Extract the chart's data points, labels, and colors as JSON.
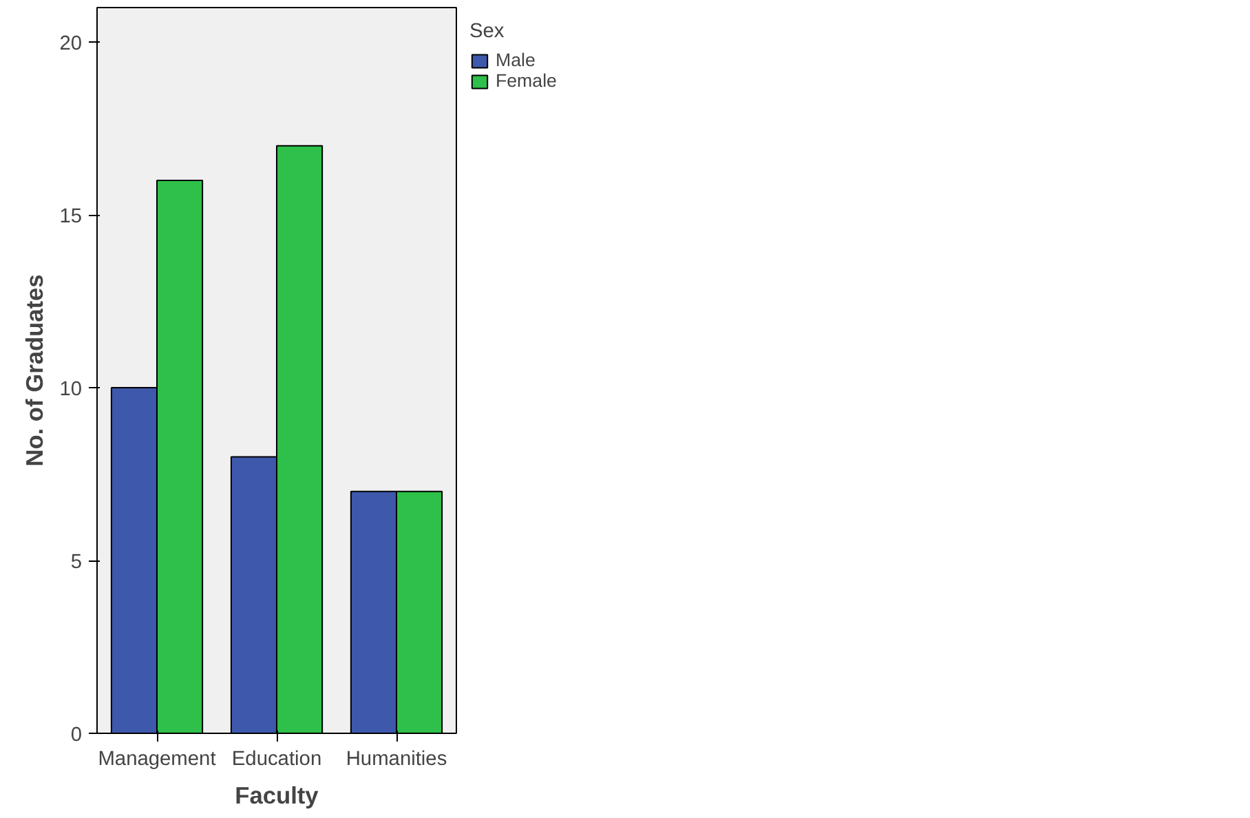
{
  "chart_data": {
    "type": "bar",
    "xlabel": "Faculty",
    "ylabel": "No. of Graduates",
    "legend_title": "Sex",
    "categories": [
      "Management",
      "Education",
      "Humanities"
    ],
    "series": [
      {
        "name": "Male",
        "color": "#3e58ac",
        "values": [
          10,
          8,
          7
        ]
      },
      {
        "name": "Female",
        "color": "#2ec04a",
        "values": [
          16,
          17,
          7
        ]
      }
    ],
    "ylim": [
      0,
      21
    ],
    "yticks": [
      0,
      5,
      10,
      15,
      20
    ],
    "grid": false,
    "legend": "right"
  }
}
